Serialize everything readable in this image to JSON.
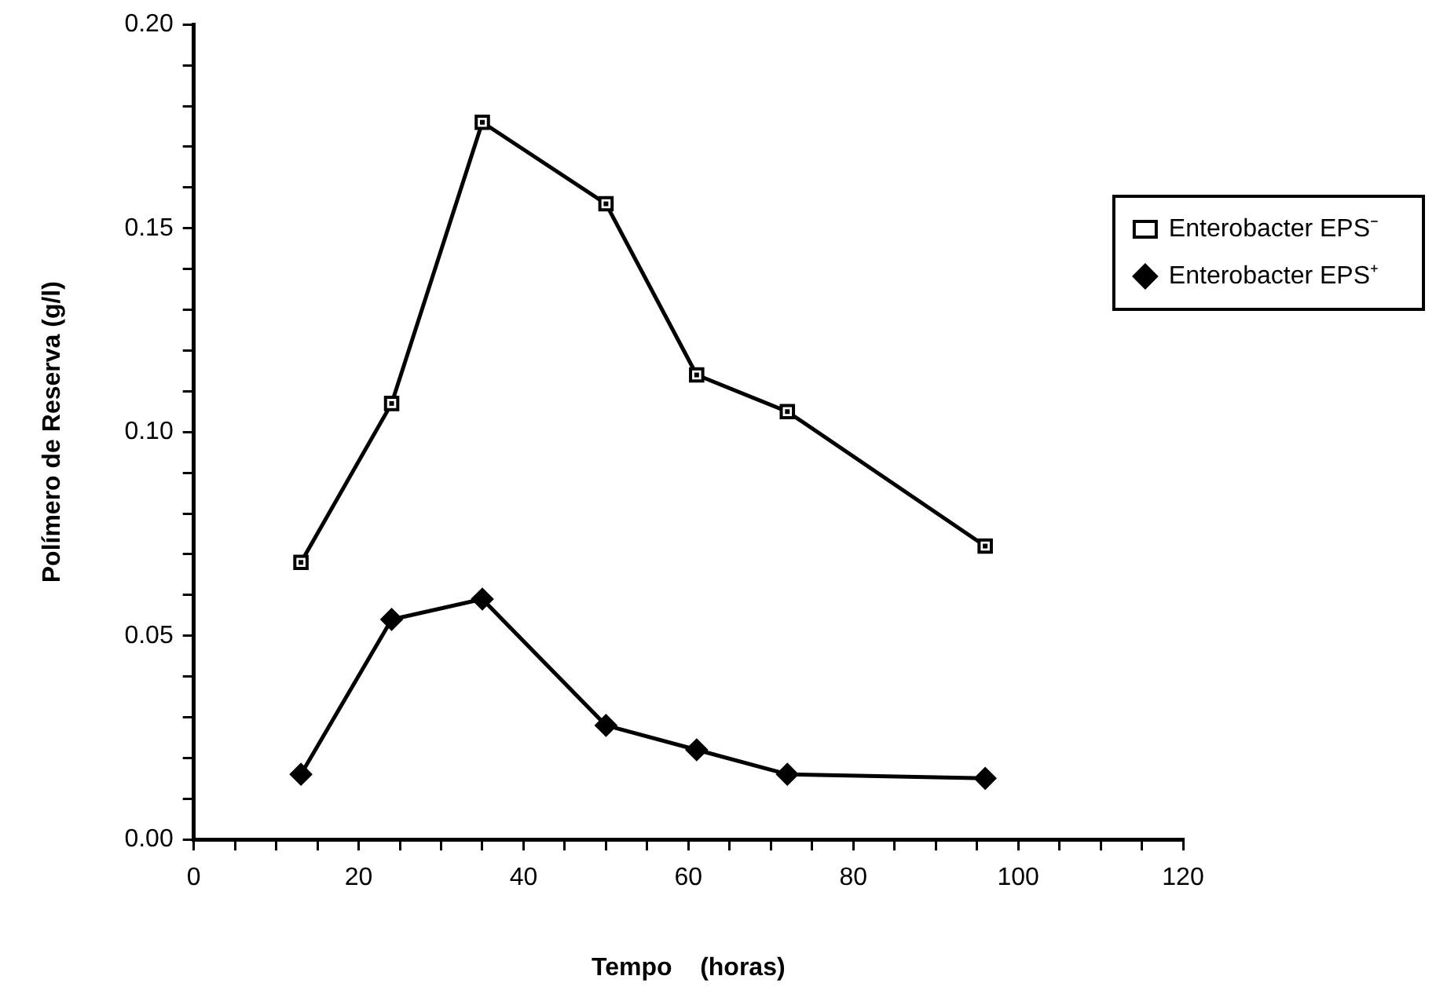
{
  "chart_data": {
    "type": "line",
    "xlabel": "Tempo    (horas)",
    "ylabel": "Polímero de Reserva (g/l)",
    "x": [
      13,
      24,
      35,
      50,
      61,
      72,
      96
    ],
    "series": [
      {
        "name": "Enterobacter EPS⁻",
        "color": "#000000",
        "marker": "square",
        "values": [
          0.068,
          0.107,
          0.176,
          0.156,
          0.114,
          0.105,
          0.072
        ]
      },
      {
        "name": "Enterobacter EPS⁺",
        "color": "#000000",
        "marker": "diamond",
        "values": [
          0.016,
          0.054,
          0.059,
          0.028,
          0.022,
          0.016,
          0.015
        ]
      }
    ],
    "xlim": [
      0,
      120
    ],
    "ylim": [
      0,
      0.2
    ],
    "xticks": [
      0,
      {
        "value": 5,
        "label": null
      },
      {
        "value": 10,
        "label": null
      },
      {
        "value": 15,
        "label": null
      },
      20,
      {
        "value": 25,
        "label": null
      },
      {
        "value": 30,
        "label": null
      },
      {
        "value": 35,
        "label": null
      },
      40,
      {
        "value": 45,
        "label": null
      },
      {
        "value": 50,
        "label": null
      },
      {
        "value": 55,
        "label": null
      },
      60,
      {
        "value": 65,
        "label": null
      },
      {
        "value": 70,
        "label": null
      },
      {
        "value": 75,
        "label": null
      },
      80,
      {
        "value": 85,
        "label": null
      },
      {
        "value": 90,
        "label": null
      },
      {
        "value": 95,
        "label": null
      },
      100,
      {
        "value": 105,
        "label": null
      },
      {
        "value": 110,
        "label": null
      },
      {
        "value": 115,
        "label": null
      },
      120
    ],
    "yticks": [
      {
        "value": 0,
        "label": "0.00"
      },
      {
        "value": 0.01,
        "label": null
      },
      {
        "value": 0.02,
        "label": null
      },
      {
        "value": 0.03,
        "label": null
      },
      {
        "value": 0.04,
        "label": null
      },
      {
        "value": 0.05,
        "label": "0.05"
      },
      {
        "value": 0.06,
        "label": null
      },
      {
        "value": 0.07,
        "label": null
      },
      {
        "value": 0.08,
        "label": null
      },
      {
        "value": 0.09,
        "label": null
      },
      {
        "value": 0.1,
        "label": "0.10"
      },
      {
        "value": 0.11,
        "label": null
      },
      {
        "value": 0.12,
        "label": null
      },
      {
        "value": 0.13,
        "label": null
      },
      {
        "value": 0.14,
        "label": null
      },
      {
        "value": 0.15,
        "label": "0.15"
      },
      {
        "value": 0.16,
        "label": null
      },
      {
        "value": 0.17,
        "label": null
      },
      {
        "value": 0.18,
        "label": null
      },
      {
        "value": 0.19,
        "label": null
      },
      {
        "value": 0.2,
        "label": "0.20"
      }
    ],
    "grid": false,
    "legend": "top right",
    "line_style": "solid"
  }
}
